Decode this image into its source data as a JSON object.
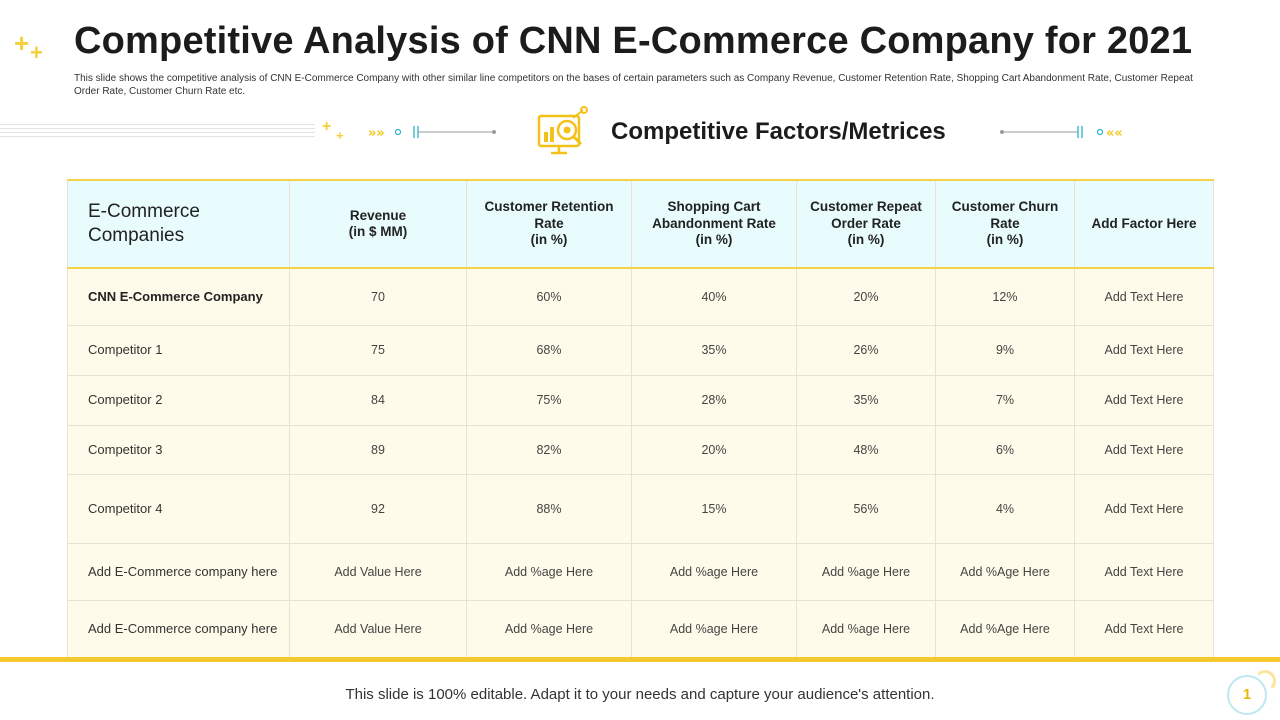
{
  "header": {
    "title": "Competitive Analysis of CNN E-Commerce Company for 2021",
    "subtitle": "This slide shows the competitive analysis of CNN E-Commerce Company with other similar line competitors on the bases of certain parameters such as Company Revenue, Customer Retention Rate, Shopping Cart Abandonment Rate, Customer Repeat Order Rate, Customer Churn Rate etc."
  },
  "section": {
    "title": "Competitive Factors/Metrices",
    "icon": "analytics-magnifier-icon"
  },
  "table": {
    "columns": [
      {
        "label": "E-Commerce Companies"
      },
      {
        "label": "Revenue\n(in $ MM)"
      },
      {
        "label": "Customer Retention Rate\n(in %)"
      },
      {
        "label": "Shopping Cart Abandonment Rate\n(in %)"
      },
      {
        "label": "Customer Repeat Order Rate\n(in %)"
      },
      {
        "label": "Customer Churn Rate\n(in %)"
      },
      {
        "label": "Add Factor Here"
      }
    ],
    "rows": [
      {
        "cells": [
          "CNN E-Commerce  Company",
          "70",
          "60%",
          "40%",
          "20%",
          "12%",
          "Add Text Here"
        ]
      },
      {
        "cells": [
          "Competitor 1",
          "75",
          "68%",
          "35%",
          "26%",
          "9%",
          "Add Text Here"
        ]
      },
      {
        "cells": [
          "Competitor 2",
          "84",
          "75%",
          "28%",
          "35%",
          "7%",
          "Add Text Here"
        ]
      },
      {
        "cells": [
          "Competitor 3",
          "89",
          "82%",
          "20%",
          "48%",
          "6%",
          "Add Text Here"
        ]
      },
      {
        "cells": [
          "Competitor 4",
          "92",
          "88%",
          "15%",
          "56%",
          "4%",
          "Add Text Here"
        ]
      },
      {
        "cells": [
          "Add E-Commerce company here",
          "Add Value Here",
          "Add %age Here",
          "Add %age Here",
          "Add %age Here",
          "Add %Age Here",
          "Add Text Here"
        ]
      },
      {
        "cells": [
          "Add E-Commerce company here",
          "Add Value Here",
          "Add %age Here",
          "Add %age Here",
          "Add %age Here",
          "Add %Age Here",
          "Add Text Here"
        ]
      }
    ]
  },
  "footer": {
    "text": "This slide is 100% editable. Adapt it to your needs and capture your audience's attention.",
    "page_number": "1"
  },
  "colors": {
    "accent_yellow": "#f6ca2e",
    "header_cyan": "#e8fbfd",
    "row_cream": "#fffbea"
  }
}
